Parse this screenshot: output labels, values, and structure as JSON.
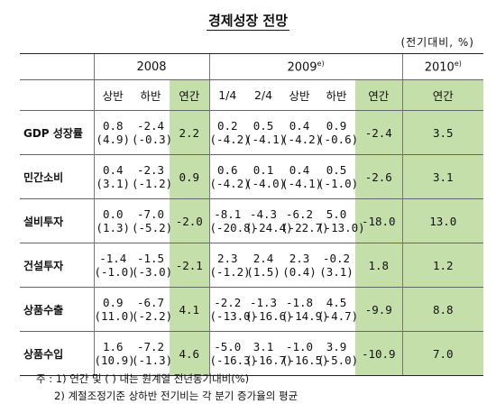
{
  "title": "경제성장 전망",
  "unit": "(전기대비, %)",
  "headers": {
    "y2008": "2008",
    "y2009": "2009",
    "y2009_mark": "e)",
    "y2010": "2010",
    "y2010_mark": "e)",
    "h1": "상반",
    "h2": "하반",
    "annual": "연간",
    "q1": "1/4",
    "q2": "2/4"
  },
  "rows": [
    {
      "label": "GDP 성장률",
      "top": [
        "0.8",
        "-2.4",
        "2.2",
        "0.2",
        "0.5",
        "0.4",
        "0.9",
        "-2.4",
        "3.5"
      ],
      "bot": [
        "(4.9)",
        "(-0.3)",
        "(-4.2)",
        "(-4.1)",
        "(-4.2)",
        "(-0.6)"
      ]
    },
    {
      "label": "민간소비",
      "top": [
        "0.4",
        "-2.3",
        "0.9",
        "0.6",
        "0.1",
        "0.4",
        "0.5",
        "-2.6",
        "3.1"
      ],
      "bot": [
        "(3.1)",
        "(-1.2)",
        "(-4.2)",
        "(-4.0)",
        "(-4.1)",
        "(-1.0)"
      ]
    },
    {
      "label": "설비투자",
      "top": [
        "0.0",
        "-7.0",
        "-2.0",
        "-8.1",
        "-4.3",
        "-6.2",
        "5.0",
        "-18.0",
        "13.0"
      ],
      "bot": [
        "(1.3)",
        "(-5.2)",
        "(-20.8)",
        "(-24.4)",
        "(-22.7)",
        "(-13.0)"
      ]
    },
    {
      "label": "건설투자",
      "top": [
        "-1.4",
        "-1.5",
        "-2.1",
        "2.3",
        "2.4",
        "2.3",
        "-0.2",
        "1.8",
        "1.2"
      ],
      "bot": [
        "(-1.0)",
        "(-3.0)",
        "(-1.2)",
        "(1.5)",
        "(0.4)",
        "(3.1)"
      ]
    },
    {
      "label": "상품수출",
      "top": [
        "0.9",
        "-6.7",
        "4.1",
        "-2.2",
        "-1.3",
        "-1.8",
        "4.5",
        "-9.9",
        "8.8"
      ],
      "bot": [
        "(11.0)",
        "(-2.2)",
        "(-13.0)",
        "(-16.6)",
        "(-14.9)",
        "(-4.7)"
      ]
    },
    {
      "label": "상품수입",
      "top": [
        "1.6",
        "-7.2",
        "4.6",
        "-5.0",
        "3.1",
        "-1.0",
        "3.9",
        "-10.9",
        "7.0"
      ],
      "bot": [
        "(10.9)",
        "(-1.3)",
        "(-16.3)",
        "(-16.7)",
        "(-16.5)",
        "(-5.0)"
      ]
    }
  ],
  "notes": [
    "주 : 1) 연간 및 ( ) 내는 원계열 전년동기대비(%)",
    "2) 계절조정기준 상하반 전기비는 각 분기 증가율의 평균"
  ]
}
